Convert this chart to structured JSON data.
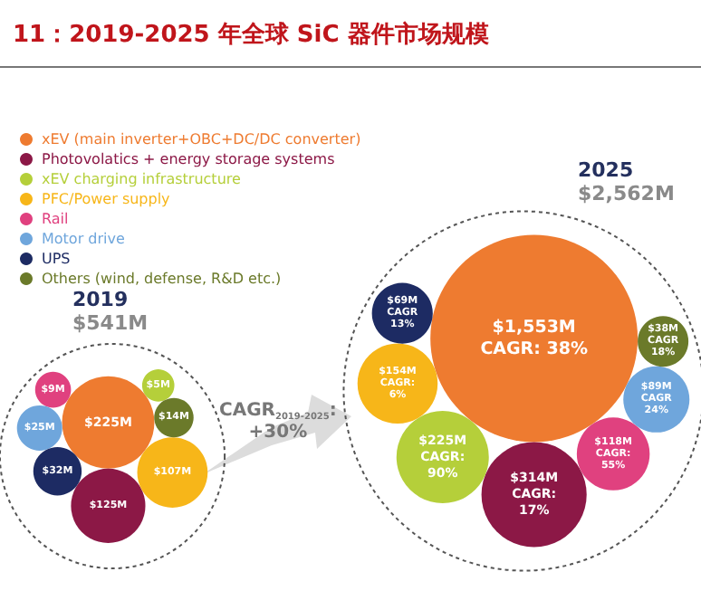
{
  "chart_data": {
    "type": "other",
    "title": "11：2019-2025 年全球 SiC 器件市场规模",
    "categories": [
      "2019",
      "2025"
    ],
    "series": [
      {
        "name": "xEV (main inverter+OBC+DC/DC converter)",
        "color": "#ee7b30",
        "values": [
          225,
          1553
        ],
        "value_labels": [
          "$225M",
          "$1,553M"
        ]
      },
      {
        "name": "Photovolatics + energy storage systems",
        "color": "#8c1846",
        "values": [
          125,
          314
        ],
        "value_labels": [
          "$125M",
          "$314M"
        ]
      },
      {
        "name": "xEV charging infrastructure",
        "color": "#b5cf3a",
        "values": [
          5,
          225
        ],
        "value_labels": [
          "$5M",
          "$225M"
        ]
      },
      {
        "name": "PFC/Power supply",
        "color": "#f7b619",
        "values": [
          107,
          154
        ],
        "value_labels": [
          "$107M",
          "$154M"
        ]
      },
      {
        "name": "Rail",
        "color": "#e0417f",
        "values": [
          9,
          118
        ],
        "value_labels": [
          "$9M",
          "$118M"
        ]
      },
      {
        "name": "Motor drive",
        "color": "#6fa6dc",
        "values": [
          25,
          89
        ],
        "value_labels": [
          "$25M",
          "$89M"
        ]
      },
      {
        "name": "UPS",
        "color": "#1d2b63",
        "values": [
          32,
          69
        ],
        "value_labels": [
          "$32M",
          "$69M"
        ]
      },
      {
        "name": "Others (wind, defense, R&D etc.)",
        "color": "#6b7a2a",
        "values": [
          14,
          38
        ],
        "value_labels": [
          "$14M",
          "$38M"
        ]
      }
    ],
    "totals": [
      "$541M",
      "$2,562M"
    ],
    "annotations": [
      "CAGR$_{2019-2025}$:\n+30%",
      "CAGR: 38%",
      "CAGR:\n17%",
      "CAGR:\n90%",
      "CAGR:\n6%",
      "CAGR:\n55%",
      "CAGR\n24%",
      "CAGR\n13%",
      "CAGR\n18%"
    ],
    "legend": "top left"
  }
}
